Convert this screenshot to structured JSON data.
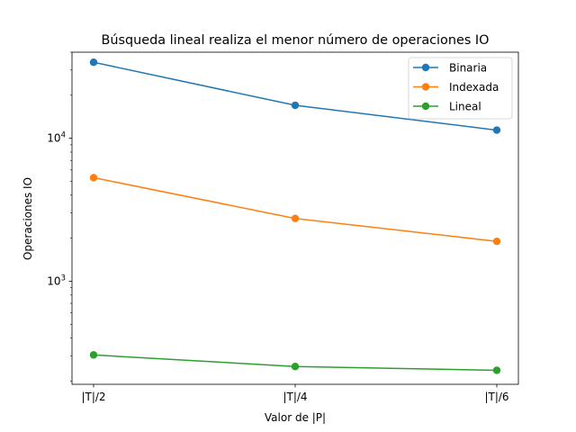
{
  "chart_data": {
    "type": "line",
    "title": "Búsqueda lineal realiza el menor número de operaciones IO",
    "xlabel": "Valor de |P|",
    "ylabel": "Operaciones IO",
    "categories": [
      "|T|/2",
      "|T|/4",
      "|T|/6"
    ],
    "yscale": "log",
    "ylim": [
      190,
      40000
    ],
    "ytick_labels": [
      {
        "base": "10",
        "exp": "3",
        "value": 1000
      },
      {
        "base": "10",
        "exp": "4",
        "value": 10000
      }
    ],
    "grid": false,
    "legend_position": "top-right",
    "series": [
      {
        "name": "Binaria",
        "color": "#1f77b4",
        "values": [
          34000,
          17000,
          11400
        ]
      },
      {
        "name": "Indexada",
        "color": "#ff7f0e",
        "values": [
          5300,
          2750,
          1900
        ]
      },
      {
        "name": "Lineal",
        "color": "#2ca02c",
        "values": [
          305,
          253,
          238
        ]
      }
    ]
  }
}
